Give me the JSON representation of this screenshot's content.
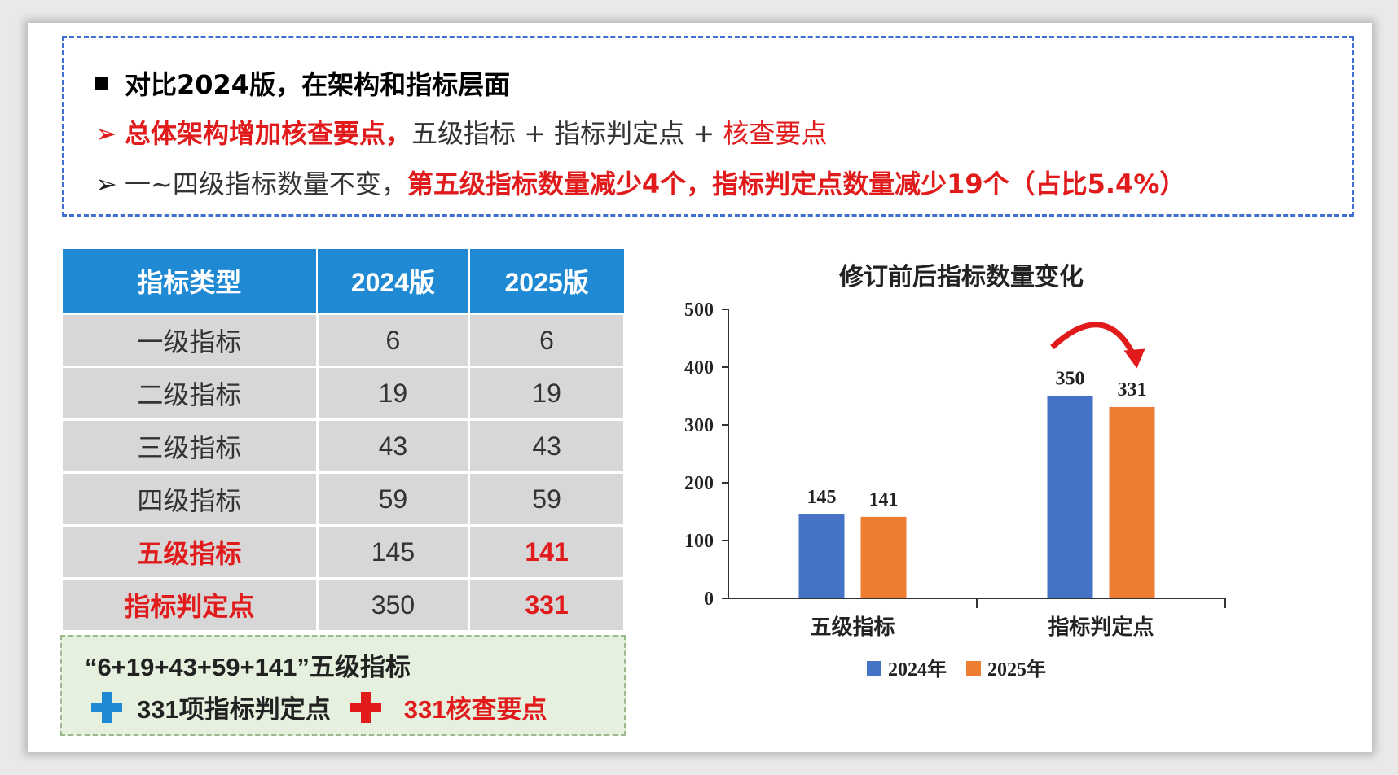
{
  "summary": {
    "heading": "对比2024版，在架构和指标层面",
    "line2": {
      "marker": "➢",
      "red_part": "总体架构增加核查要点，",
      "normal_part": "五级指标 + 指标判定点 + ",
      "red_tail": "核查要点"
    },
    "line3": {
      "marker": "➢",
      "normal_part": "一~四级指标数量不变，",
      "red_part": "第五级指标数量减少4个，指标判定点数量减少19个（占比5.4%）"
    }
  },
  "table": {
    "headers": [
      "指标类型",
      "2024版",
      "2025版"
    ],
    "rows": [
      {
        "type": "一级指标",
        "v2024": "6",
        "v2025": "6",
        "highlight": false
      },
      {
        "type": "二级指标",
        "v2024": "19",
        "v2025": "19",
        "highlight": false
      },
      {
        "type": "三级指标",
        "v2024": "43",
        "v2025": "43",
        "highlight": false
      },
      {
        "type": "四级指标",
        "v2024": "59",
        "v2025": "59",
        "highlight": false
      },
      {
        "type": "五级指标",
        "v2024": "145",
        "v2025": "141",
        "highlight": true
      },
      {
        "type": "指标判定点",
        "v2024": "350",
        "v2025": "331",
        "highlight": true
      }
    ]
  },
  "formula": {
    "line1": "“6+19+43+59+141”五级指标",
    "item1": "331项指标判定点",
    "item2": "331核查要点"
  },
  "chart_data": {
    "type": "bar",
    "title": "修订前后指标数量变化",
    "categories": [
      "五级指标",
      "指标判定点"
    ],
    "series": [
      {
        "name": "2024年",
        "values": [
          145,
          350
        ],
        "color": "#4472c4"
      },
      {
        "name": "2025年",
        "values": [
          141,
          331
        ],
        "color": "#ed7d31"
      }
    ],
    "ylim": [
      0,
      500
    ],
    "yticks": [
      0,
      100,
      200,
      300,
      400,
      500
    ],
    "data_labels": true,
    "legend_position": "bottom",
    "grid": false,
    "annotation": "curved-red-arrow"
  }
}
